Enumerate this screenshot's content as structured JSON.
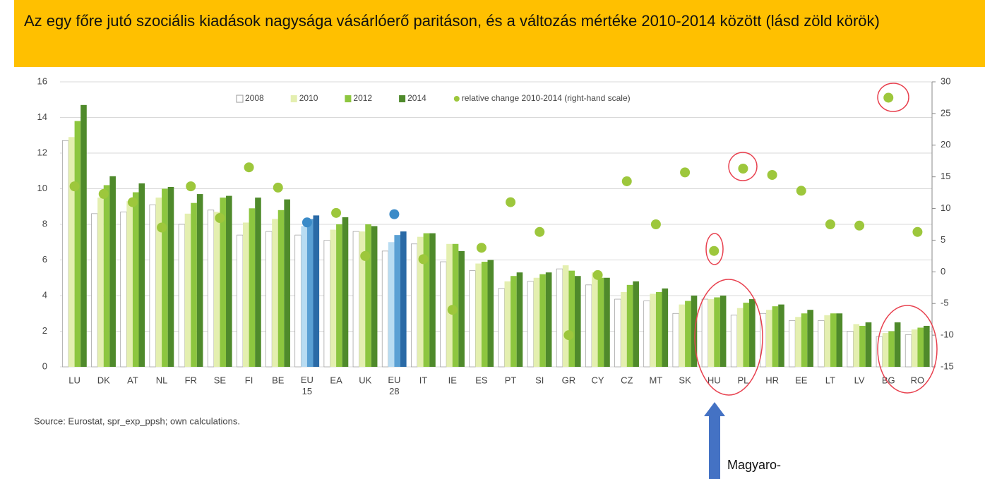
{
  "chart_data": {
    "type": "bar",
    "title": "Az egy főre jutó szociális kiadások nagysága vásárlóerő paritáson, és a változás mértéke 2010-2014 között (lásd zöld körök)",
    "categories": [
      "LU",
      "DK",
      "AT",
      "NL",
      "FR",
      "SE",
      "FI",
      "BE",
      "EU 15",
      "EA",
      "UK",
      "EU 28",
      "IT",
      "IE",
      "ES",
      "PT",
      "SI",
      "GR",
      "CY",
      "CZ",
      "MT",
      "SK",
      "HU",
      "PL",
      "HR",
      "EE",
      "LT",
      "LV",
      "BG",
      "RO"
    ],
    "highlight_categories": [
      "EU 15",
      "EU 28"
    ],
    "series": [
      {
        "name": "2008",
        "color": "#ffffff",
        "highlight_color": "#ffffff",
        "values": [
          12.7,
          8.6,
          8.7,
          9.1,
          8.0,
          8.8,
          7.4,
          7.6,
          7.4,
          7.1,
          7.6,
          6.5,
          6.9,
          5.9,
          5.4,
          4.4,
          4.8,
          5.5,
          4.6,
          3.8,
          3.7,
          3.0,
          3.8,
          2.9,
          3.0,
          2.6,
          2.6,
          2.0,
          1.7,
          1.8
        ]
      },
      {
        "name": "2010",
        "color": "#e4efb0",
        "highlight_color": "#b8dcf2",
        "values": [
          12.9,
          9.5,
          9.3,
          9.5,
          8.6,
          8.7,
          8.1,
          8.3,
          7.9,
          7.7,
          7.6,
          7.0,
          7.3,
          6.9,
          5.8,
          4.8,
          5.0,
          5.7,
          5.3,
          4.2,
          4.1,
          3.5,
          3.8,
          3.3,
          3.2,
          2.8,
          2.9,
          2.4,
          1.9,
          2.1
        ]
      },
      {
        "name": "2012",
        "color": "#8dc63f",
        "highlight_color": "#5aa0d4",
        "values": [
          13.8,
          10.2,
          9.8,
          10.0,
          9.2,
          9.5,
          8.9,
          8.8,
          8.3,
          8.0,
          8.0,
          7.4,
          7.5,
          6.9,
          5.9,
          5.1,
          5.2,
          5.4,
          5.0,
          4.6,
          4.2,
          3.7,
          3.9,
          3.6,
          3.4,
          3.0,
          3.0,
          2.3,
          2.0,
          2.2
        ]
      },
      {
        "name": "2014",
        "color": "#4f8a2b",
        "highlight_color": "#2a6aa6",
        "values": [
          14.7,
          10.7,
          10.3,
          10.1,
          9.7,
          9.6,
          9.5,
          9.4,
          8.5,
          8.4,
          7.9,
          7.6,
          7.5,
          6.5,
          6.0,
          5.3,
          5.3,
          5.1,
          5.0,
          4.8,
          4.4,
          4.0,
          4.0,
          3.8,
          3.5,
          3.2,
          3.0,
          2.5,
          2.5,
          2.3
        ]
      },
      {
        "name": "relative change 2010-2014 (right-hand scale)",
        "type": "scatter",
        "axis": "y2",
        "color": "#9dc73c",
        "highlight_color": "#3b8bc8",
        "values": [
          13.5,
          12.3,
          11,
          7,
          13.5,
          8.5,
          16.5,
          13.3,
          7.8,
          9.3,
          2.5,
          9.1,
          2,
          -6,
          3.8,
          11,
          6.3,
          -10,
          -0.5,
          14.3,
          7.5,
          15.7,
          3.3,
          16.3,
          15.3,
          12.8,
          7.5,
          7.3,
          27.5,
          6.3
        ]
      }
    ],
    "ylim": [
      0,
      16
    ],
    "yticks": [
      0,
      2,
      4,
      6,
      8,
      10,
      12,
      14,
      16
    ],
    "y2lim": [
      -15,
      30
    ],
    "y2ticks": [
      -15,
      -10,
      -5,
      0,
      5,
      10,
      15,
      20,
      25,
      30
    ],
    "grid": true,
    "legend": "top",
    "source": "Source:   Eurostat, spr_exp_ppsh; own calculations.",
    "annotation": "Magyaro-"
  }
}
